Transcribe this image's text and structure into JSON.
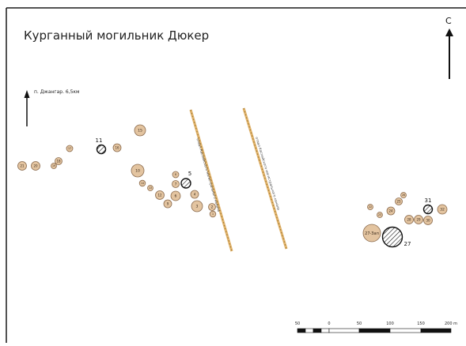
{
  "map": {
    "title": "Курганный могильник Дюкер",
    "north_label": "С",
    "direction_label": "п. Джангар. 6,5км",
    "canal_labels": [
      "отвал Каспийского магистрального канала",
      "отвал Каспийского магистрального канала"
    ],
    "colors": {
      "mound_fill": "#e3c4a0",
      "mound_stroke": "#8a6a4c",
      "canal_color": "#e2b46c",
      "frame_color": "#1a1a1a"
    },
    "scale_bar": {
      "labels": [
        "50",
        "0",
        "50",
        "100",
        "150",
        "200 m"
      ]
    },
    "mounds": [
      {
        "label": "21",
        "type": "mound"
      },
      {
        "label": "20",
        "type": "mound"
      },
      {
        "label": "19",
        "type": "mound"
      },
      {
        "label": "18",
        "type": "mound"
      },
      {
        "label": "17",
        "type": "mound"
      },
      {
        "label": "11",
        "type": "excavated"
      },
      {
        "label": "16",
        "type": "mound"
      },
      {
        "label": "15",
        "type": "mound"
      },
      {
        "label": "10",
        "type": "mound"
      },
      {
        "label": "14",
        "type": "mound"
      },
      {
        "label": "13",
        "type": "mound"
      },
      {
        "label": "12",
        "type": "mound"
      },
      {
        "label": "9",
        "type": "mound"
      },
      {
        "label": "8",
        "type": "mound"
      },
      {
        "label": "7",
        "type": "mound"
      },
      {
        "label": "5",
        "type": "excavated"
      },
      {
        "label": "6",
        "type": "mound"
      },
      {
        "label": "4",
        "type": "mound"
      },
      {
        "label": "3",
        "type": "mound"
      },
      {
        "label": "2",
        "type": "mound"
      },
      {
        "label": "1",
        "type": "mound"
      },
      {
        "label": "22",
        "type": "mound"
      },
      {
        "label": "23",
        "type": "mound"
      },
      {
        "label": "24",
        "type": "mound"
      },
      {
        "label": "25",
        "type": "mound"
      },
      {
        "label": "26",
        "type": "mound"
      },
      {
        "label": "27-Зап",
        "type": "mound"
      },
      {
        "label": "27",
        "type": "excavated"
      },
      {
        "label": "28",
        "type": "mound"
      },
      {
        "label": "29",
        "type": "mound"
      },
      {
        "label": "30",
        "type": "mound"
      },
      {
        "label": "31",
        "type": "excavated"
      },
      {
        "label": "32",
        "type": "mound"
      }
    ]
  }
}
